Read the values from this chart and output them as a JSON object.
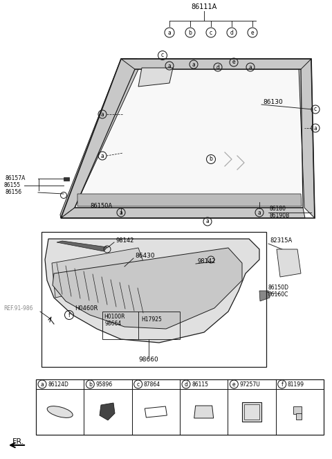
{
  "title": "86111A",
  "bg_color": "#ffffff",
  "fig_width": 4.8,
  "fig_height": 6.63,
  "dpi": 100,
  "part_labels": [
    {
      "circle": "a",
      "code": "86124D"
    },
    {
      "circle": "b",
      "code": "95896"
    },
    {
      "circle": "c",
      "code": "87864"
    },
    {
      "circle": "d",
      "code": "86115"
    },
    {
      "circle": "e",
      "code": "97257U"
    },
    {
      "circle": "f",
      "code": "81199"
    }
  ],
  "line_color": "#1a1a1a",
  "text_color": "#000000",
  "gray_color": "#888888",
  "light_gray": "#c8c8c8",
  "dark_gray": "#555555"
}
